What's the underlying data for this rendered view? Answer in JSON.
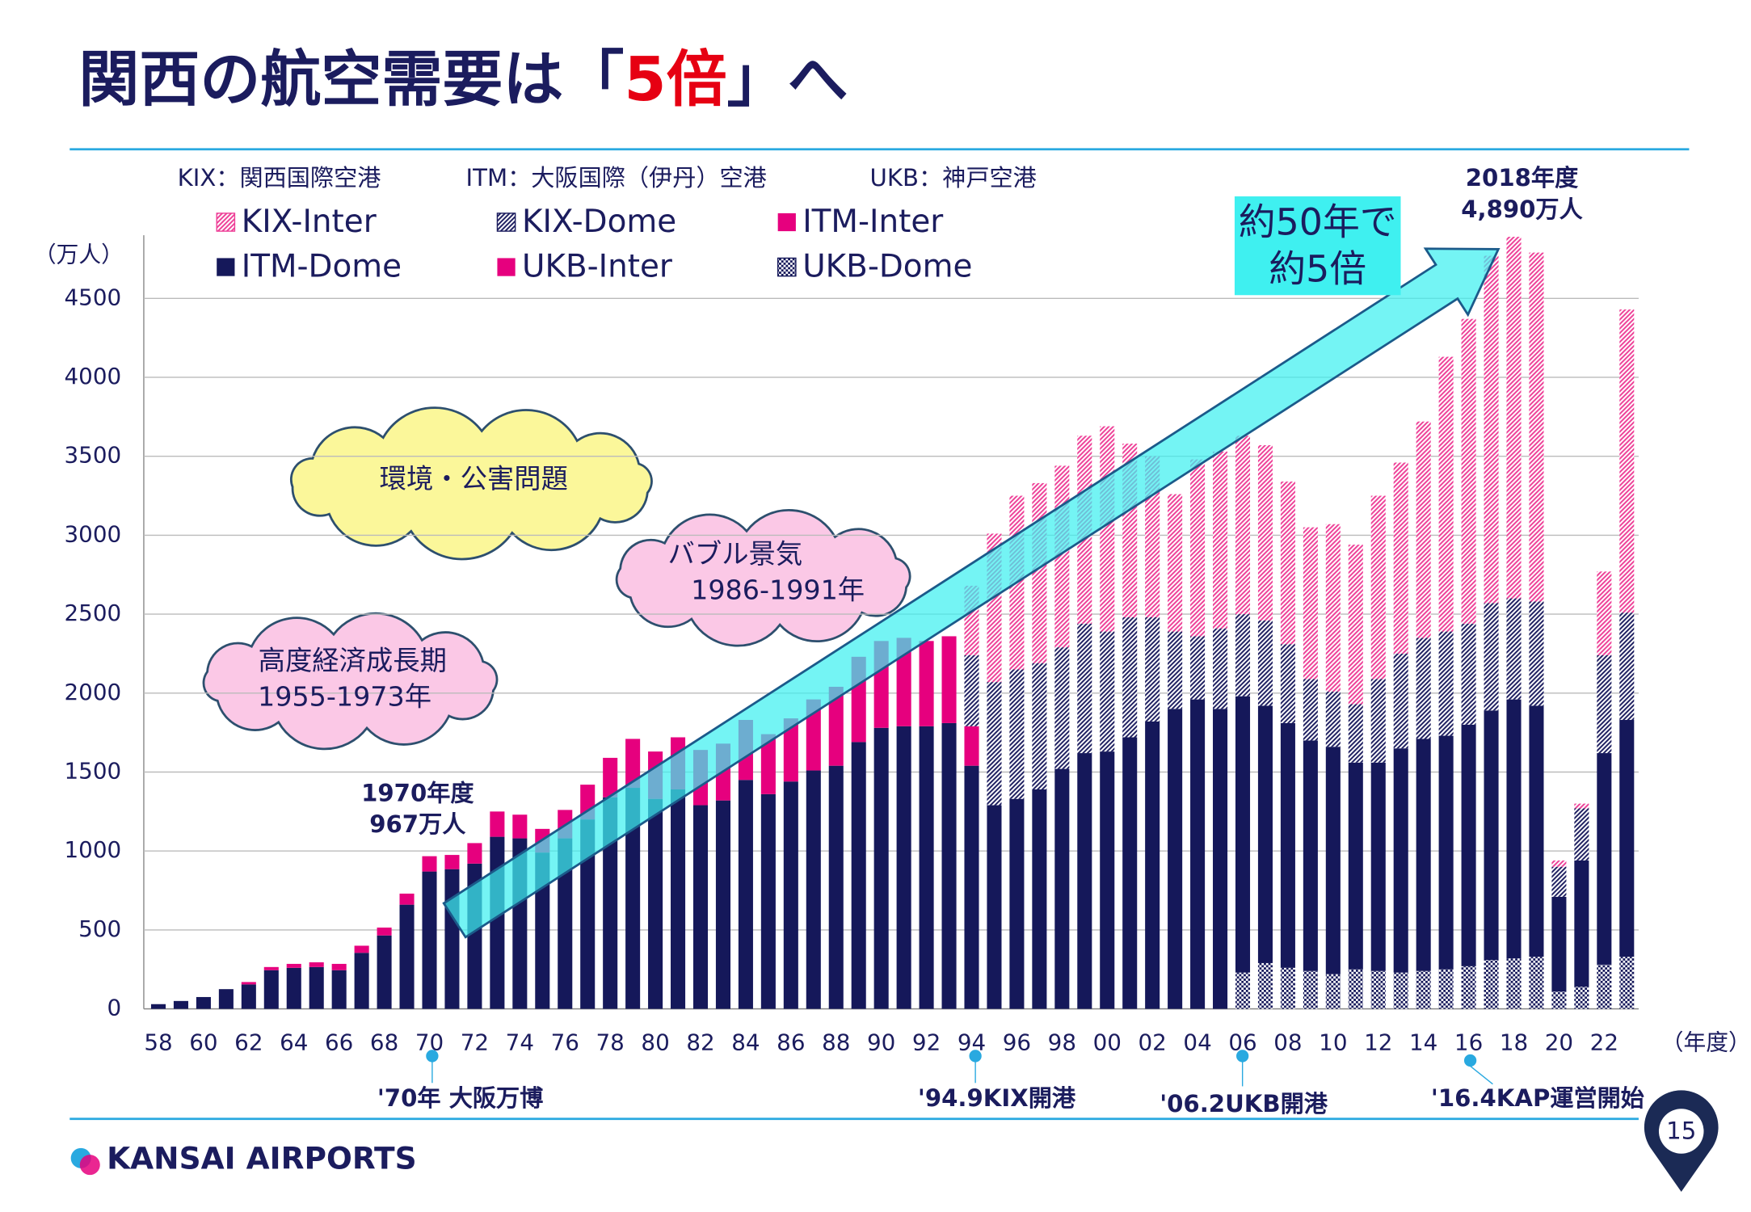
{
  "chart_data": {
    "type": "bar",
    "stacked": true,
    "title": {
      "before": "関西の航空需要は「",
      "highlight": "5倍",
      "after": "」へ"
    },
    "notes": [
      "KIX：関西国際空港",
      "ITM：大阪国際（伊丹）空港",
      "UKB：神戸空港"
    ],
    "y_label": "（万人）",
    "x_label": "（年度）",
    "categories": [
      "58",
      null,
      "60",
      null,
      "62",
      null,
      "64",
      null,
      "66",
      null,
      "68",
      null,
      "70",
      null,
      "72",
      null,
      "74",
      null,
      "76",
      null,
      "78",
      null,
      "80",
      null,
      "82",
      null,
      "84",
      null,
      "86",
      null,
      "88",
      null,
      "90",
      null,
      "92",
      null,
      "94",
      null,
      "96",
      null,
      "98",
      null,
      "00",
      null,
      "02",
      null,
      "04",
      null,
      "06",
      null,
      "08",
      null,
      "10",
      null,
      "12",
      null,
      "14",
      null,
      "16",
      null,
      "18",
      null,
      "20",
      null,
      "22",
      null
    ],
    "series": [
      {
        "name": "KIX-Inter",
        "color": "#ee3d96",
        "pattern": "hatch",
        "values": [
          0,
          0,
          0,
          0,
          0,
          0,
          0,
          0,
          0,
          0,
          0,
          0,
          0,
          0,
          0,
          0,
          0,
          0,
          0,
          0,
          0,
          0,
          0,
          0,
          0,
          0,
          0,
          0,
          0,
          0,
          0,
          0,
          0,
          0,
          0,
          0,
          440,
          940,
          1100,
          1140,
          1150,
          1190,
          1300,
          1100,
          1020,
          870,
          1120,
          1120,
          1130,
          1110,
          1030,
          960,
          1060,
          1010,
          1160,
          1210,
          1370,
          1740,
          1930,
          2200,
          2290,
          2210,
          40,
          30,
          530,
          1920
        ]
      },
      {
        "name": "KIX-Dome",
        "color": "#1b1c5e",
        "pattern": "hatch",
        "values": [
          0,
          0,
          0,
          0,
          0,
          0,
          0,
          0,
          0,
          0,
          0,
          0,
          0,
          0,
          0,
          0,
          0,
          0,
          0,
          0,
          0,
          0,
          0,
          0,
          0,
          0,
          0,
          0,
          0,
          0,
          0,
          0,
          0,
          0,
          0,
          0,
          450,
          780,
          820,
          800,
          770,
          820,
          760,
          760,
          660,
          490,
          400,
          510,
          520,
          540,
          500,
          390,
          350,
          370,
          530,
          600,
          640,
          660,
          640,
          680,
          640,
          660,
          190,
          330,
          620,
          680
        ]
      },
      {
        "name": "ITM-Inter",
        "color": "#e6007e",
        "pattern": "solid",
        "values": [
          0,
          0,
          0,
          0,
          15,
          20,
          25,
          30,
          40,
          45,
          50,
          70,
          97,
          90,
          130,
          160,
          150,
          150,
          180,
          220,
          250,
          310,
          300,
          330,
          350,
          360,
          380,
          380,
          400,
          450,
          500,
          540,
          550,
          560,
          540,
          550,
          250,
          0,
          0,
          0,
          0,
          0,
          0,
          0,
          0,
          0,
          0,
          0,
          0,
          0,
          0,
          0,
          0,
          0,
          0,
          0,
          0,
          0,
          0,
          0,
          0,
          0,
          0,
          0,
          0,
          0
        ]
      },
      {
        "name": "ITM-Dome",
        "color": "#15185a",
        "pattern": "solid",
        "values": [
          30,
          50,
          75,
          125,
          155,
          245,
          260,
          265,
          245,
          355,
          465,
          660,
          870,
          885,
          920,
          1090,
          1080,
          990,
          1080,
          1200,
          1340,
          1400,
          1330,
          1390,
          1290,
          1320,
          1450,
          1360,
          1440,
          1510,
          1540,
          1690,
          1780,
          1790,
          1790,
          1810,
          1540,
          1290,
          1330,
          1390,
          1520,
          1620,
          1630,
          1720,
          1820,
          1900,
          1960,
          1900,
          1750,
          1630,
          1550,
          1460,
          1440,
          1310,
          1320,
          1420,
          1470,
          1480,
          1530,
          1580,
          1640,
          1590,
          600,
          800,
          1340,
          1500
        ]
      },
      {
        "name": "UKB-Inter",
        "color": "#e6007e",
        "pattern": "solid",
        "values": [
          0,
          0,
          0,
          0,
          0,
          0,
          0,
          0,
          0,
          0,
          0,
          0,
          0,
          0,
          0,
          0,
          0,
          0,
          0,
          0,
          0,
          0,
          0,
          0,
          0,
          0,
          0,
          0,
          0,
          0,
          0,
          0,
          0,
          0,
          0,
          0,
          0,
          0,
          0,
          0,
          0,
          0,
          0,
          0,
          0,
          0,
          0,
          0,
          0,
          0,
          0,
          0,
          0,
          0,
          0,
          0,
          0,
          0,
          0,
          0,
          0,
          0,
          0,
          0,
          0,
          0
        ]
      },
      {
        "name": "UKB-Dome",
        "color": "#15185a",
        "pattern": "checker",
        "values": [
          0,
          0,
          0,
          0,
          0,
          0,
          0,
          0,
          0,
          0,
          0,
          0,
          0,
          0,
          0,
          0,
          0,
          0,
          0,
          0,
          0,
          0,
          0,
          0,
          0,
          0,
          0,
          0,
          0,
          0,
          0,
          0,
          0,
          0,
          0,
          0,
          0,
          0,
          0,
          0,
          0,
          0,
          0,
          0,
          0,
          0,
          0,
          0,
          230,
          290,
          260,
          240,
          220,
          250,
          240,
          230,
          240,
          250,
          270,
          310,
          320,
          330,
          110,
          140,
          280,
          330
        ]
      }
    ],
    "ylim": [
      0,
      4900
    ],
    "yticks": [
      0,
      500,
      1000,
      1500,
      2000,
      2500,
      3000,
      3500,
      4000,
      4500
    ],
    "grid": true,
    "annotations": {
      "peak": [
        "2018年度",
        "4,890万人"
      ],
      "start": [
        "1970年度",
        "967万人"
      ],
      "trend": [
        "約50年で",
        "約5倍"
      ],
      "cloud_env": "環境・公害問題",
      "cloud_bubble": [
        "バブル景気",
        "1986-1991年"
      ],
      "cloud_growth": [
        "高度経済成長期",
        "1955-1973年"
      ]
    },
    "events": [
      "'70年 大阪万博",
      "'94.9KIX開港",
      "'06.2UKB開港",
      "'16.4KAP運営開始"
    ],
    "logo": "KANSAI AIRPORTS",
    "page_number": "15"
  }
}
